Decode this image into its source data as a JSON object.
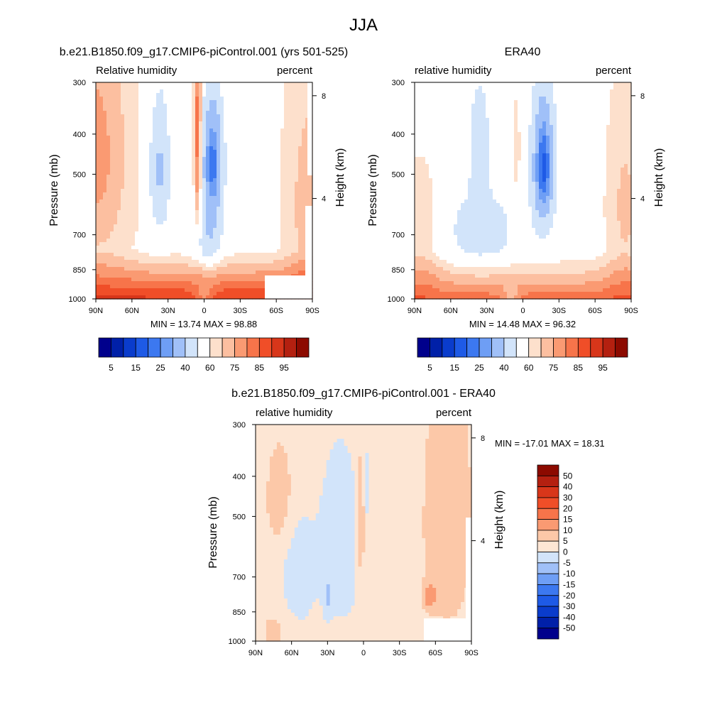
{
  "figure": {
    "title": "JJA"
  },
  "colors": {
    "rh_levels": [
      "#00008c",
      "#0020a8",
      "#0a3ccc",
      "#1e5ae6",
      "#3c78f0",
      "#6e9ef5",
      "#a0c0f8",
      "#d2e4fa",
      "#ffffff",
      "#fde0cc",
      "#fcbfa0",
      "#fa9a72",
      "#f7744a",
      "#f04e28",
      "#d8361a",
      "#b42010",
      "#8c0a00"
    ],
    "diff_levels": [
      "#00008c",
      "#0020a8",
      "#0a3ccc",
      "#1e5ae6",
      "#3c78f0",
      "#6e9ef5",
      "#a0c0f8",
      "#d2e4fa",
      "#fde6d4",
      "#fcc8a8",
      "#fa9a72",
      "#f7744a",
      "#f04e28",
      "#d8361a",
      "#b42010",
      "#8c0a00"
    ]
  },
  "chart_data": [
    {
      "type": "heatmap",
      "title": "b.e21.B1850.f09_g17.CMIP6-piControl.001 (yrs 501-525)",
      "left_label": "Relative humidity",
      "right_label": "percent",
      "ylabel": "Pressure (mb)",
      "ylabel_right": "Height (km)",
      "x_ticks": [
        "90N",
        "60N",
        "30N",
        "0",
        "30S",
        "60S",
        "90S"
      ],
      "y_ticks": [
        "300",
        "400",
        "500",
        "700",
        "850",
        "1000"
      ],
      "y_right_ticks": [
        "8",
        "4"
      ],
      "min_max": "MIN =  13.74  MAX =  98.88",
      "colorbar_labels": [
        "5",
        "15",
        "25",
        "40",
        "60",
        "75",
        "85",
        "95"
      ],
      "z_range": [
        13.74,
        98.88
      ]
    },
    {
      "type": "heatmap",
      "title": "ERA40",
      "left_label": "relative humidity",
      "right_label": "percent",
      "ylabel": "Pressure (mb)",
      "ylabel_right": "Height (km)",
      "x_ticks": [
        "90N",
        "60N",
        "30N",
        "0",
        "30S",
        "60S",
        "90S"
      ],
      "y_ticks": [
        "300",
        "400",
        "500",
        "700",
        "850",
        "1000"
      ],
      "y_right_ticks": [
        "8",
        "4"
      ],
      "min_max": "MIN =  14.48  MAX =  96.32",
      "colorbar_labels": [
        "5",
        "15",
        "25",
        "40",
        "60",
        "75",
        "85",
        "95"
      ],
      "z_range": [
        14.48,
        96.32
      ]
    },
    {
      "type": "heatmap",
      "title": "b.e21.B1850.f09_g17.CMIP6-piControl.001 - ERA40",
      "left_label": "relative humidity",
      "right_label": "percent",
      "ylabel": "Pressure (mb)",
      "ylabel_right": "Height (km)",
      "x_ticks": [
        "90N",
        "60N",
        "30N",
        "0",
        "30S",
        "60S",
        "90S"
      ],
      "y_ticks": [
        "300",
        "400",
        "500",
        "700",
        "850",
        "1000"
      ],
      "y_right_ticks": [
        "8",
        "4"
      ],
      "min_max": "MIN = -17.01  MAX =  18.31",
      "colorbar_labels": [
        "50",
        "40",
        "30",
        "20",
        "15",
        "10",
        "5",
        "0",
        "-5",
        "-10",
        "-15",
        "-20",
        "-30",
        "-40",
        "-50"
      ],
      "z_range": [
        -17.01,
        18.31
      ]
    }
  ]
}
